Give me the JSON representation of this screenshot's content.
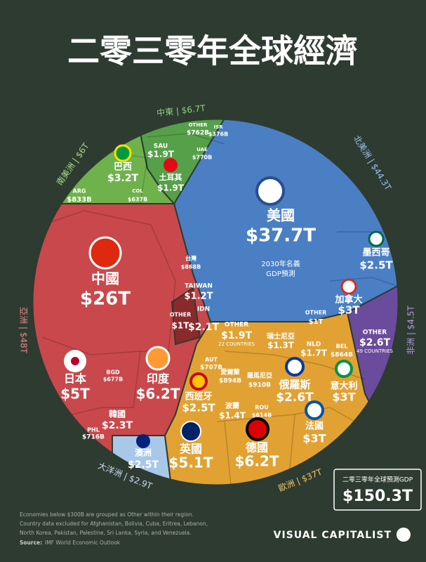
{
  "title": "二零三零年全球經濟",
  "regions": [
    "中東 | $6.7T",
    "北美洲 | $44.3T",
    "南美洲 | $6T",
    "亞洲 | $48T",
    "非洲 | $4.5T",
    "歐洲 | $37T",
    "大洋洲 | $2.9T"
  ],
  "center_note": [
    "2030年名義",
    "GDP預測"
  ],
  "cells": [
    {
      "name": "美國",
      "value": "$37.7T"
    },
    {
      "name": "中國",
      "value": "$26T"
    },
    {
      "name": "印度",
      "value": "$6.2T"
    },
    {
      "name": "日本",
      "value": "$5T"
    },
    {
      "name": "韓國",
      "value": "$2.3T"
    },
    {
      "name": "台灣",
      "value": "$868B"
    },
    {
      "name": "TAIWAN",
      "value": "$1.2T"
    },
    {
      "name": "IDN",
      "value": "$2.1T"
    },
    {
      "name": "OTHER",
      "value": "$1T"
    },
    {
      "name": "巴西",
      "value": "$3.2T"
    },
    {
      "name": "土耳其",
      "value": "$1.9T"
    },
    {
      "name": "SAU",
      "value": "$1.9T"
    },
    {
      "name": "UAE",
      "value": "$770B"
    },
    {
      "name": "ISR",
      "value": "$376B"
    },
    {
      "name": "OTHER",
      "value": "$762B"
    },
    {
      "name": "ARG",
      "value": "$833B"
    },
    {
      "name": "COL",
      "value": "$637B"
    },
    {
      "name": "墨西哥",
      "value": "$2.5T"
    },
    {
      "name": "加拿大",
      "value": "$3T"
    },
    {
      "name": "OTHER",
      "value": "$1T"
    },
    {
      "name": "OTHER",
      "value": "$2.6T",
      "note": "49 COUNTRIES"
    },
    {
      "name": "OTHER",
      "value": "$1.9T",
      "note": "22 COUNTRIES"
    },
    {
      "name": "德國",
      "value": "$6.2T"
    },
    {
      "name": "英國",
      "value": "$5.1T"
    },
    {
      "name": "法國",
      "value": "$3T"
    },
    {
      "name": "意大利",
      "value": "$3T"
    },
    {
      "name": "西班牙",
      "value": "$2.5T"
    },
    {
      "name": "俄羅斯",
      "value": "$2.6T"
    },
    {
      "name": "瑞士尼亞",
      "value": "$1.3T"
    },
    {
      "name": "NLD",
      "value": "$1.7T"
    },
    {
      "name": "BEL",
      "value": "$864B"
    },
    {
      "name": "波蘭",
      "value": "$1.4T"
    },
    {
      "name": "澳洲",
      "value": "$2.5T"
    },
    {
      "name": "羅馬尼亞",
      "value": "$910B"
    },
    {
      "name": "愛爾蘭",
      "value": "$894B"
    },
    {
      "name": "AUT",
      "value": "$707B"
    },
    {
      "name": "ROU",
      "value": "$614B"
    },
    {
      "name": "PHL",
      "value": "$716B"
    },
    {
      "name": "BGD",
      "value": "$677B"
    }
  ],
  "total": {
    "label": "二零三零年全球預測GDP",
    "value": "$150.3T"
  },
  "footnotes": [
    "Economies below $300B are grouped as Other within their region.",
    "Country data excluded for Afghanistan, Bolivia, Cuba, Eritrea, Lebanon,",
    "North Korea, Pakistan, Palestine, Sri Lanka, Syria, and Venezuela."
  ],
  "source_label": "Source:",
  "source": "IMF World Economic Outlook",
  "brand": "VISUAL CAPITALIST"
}
